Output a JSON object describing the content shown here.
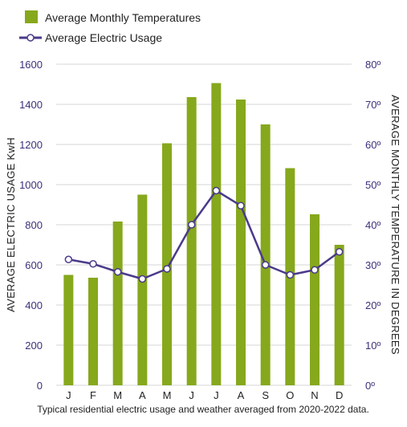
{
  "chart_data": {
    "type": "bar+line",
    "categories": [
      "J",
      "F",
      "M",
      "A",
      "M",
      "J",
      "J",
      "A",
      "S",
      "O",
      "N",
      "D"
    ],
    "series": [
      {
        "name": "Average Monthly Temperatures",
        "type": "bar",
        "axis": "right",
        "values": [
          27.5,
          26.8,
          40.8,
          47.5,
          60.3,
          71.8,
          75.3,
          71.2,
          65.0,
          54.1,
          42.6,
          35.0
        ]
      },
      {
        "name": "Average Electric Usage",
        "type": "line",
        "axis": "left",
        "values": [
          627,
          605,
          565,
          530,
          580,
          800,
          970,
          895,
          600,
          550,
          575,
          665
        ]
      }
    ],
    "ylabel_left": "AVERAGE ELECTRIC USAGE KwH",
    "ylabel_right": "AVERAGE MONTHLY TEMPERATURE IN DEGREES",
    "ylim_left": [
      0,
      1600
    ],
    "yticks_left": [
      "0",
      "200",
      "400",
      "600",
      "800",
      "1000",
      "1200",
      "1400",
      "1600"
    ],
    "ylim_right": [
      0,
      80
    ],
    "yticks_right": [
      "0º",
      "10º",
      "20º",
      "30º",
      "40º",
      "50º",
      "60º",
      "70º",
      "80º"
    ],
    "caption": "Typical residential electric usage and weather averaged from 2020-2022 data.",
    "grid": true,
    "legend": "top-left",
    "colors": {
      "bar": "#86a81c",
      "line": "#4b3a8a",
      "grid": "#d6d6d6",
      "axis_text": "#3d2f7a"
    }
  }
}
